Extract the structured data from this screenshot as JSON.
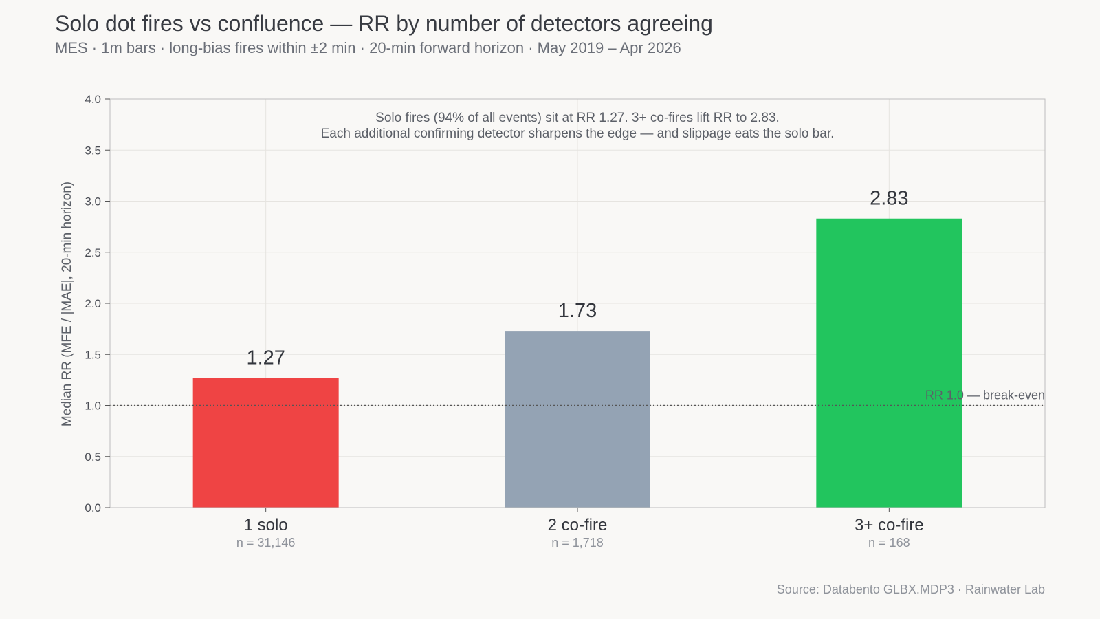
{
  "chart_data": {
    "type": "bar",
    "title": "Solo dot fires vs confluence — RR by number of detectors agreeing",
    "subtitle": "MES · 1m bars · long-bias fires within ±2 min · 20-min forward horizon · May 2019 – Apr 2026",
    "xlabel": "",
    "ylabel": "Median RR (MFE / |MAE|, 20-min horizon)",
    "ylim": [
      0,
      4.0
    ],
    "yticks": [
      "0.0",
      "0.5",
      "1.0",
      "1.5",
      "2.0",
      "2.5",
      "3.0",
      "3.5",
      "4.0"
    ],
    "grid": true,
    "categories": [
      "1 solo",
      "2 co-fire",
      "3+ co-fire"
    ],
    "sample_sizes": [
      "n = 31,146",
      "n = 1,718",
      "n = 168"
    ],
    "values": [
      1.27,
      1.73,
      2.83
    ],
    "value_labels": [
      "1.27",
      "1.73",
      "2.83"
    ],
    "colors": [
      "#ef4444",
      "#94a3b4",
      "#22c55e"
    ],
    "reference_line": {
      "value": 1.0,
      "label": "RR 1.0 — break-even",
      "style": "dotted"
    },
    "annotation": [
      "Solo fires (94% of all events) sit at RR 1.27.   3+ co-fires lift RR to 2.83.",
      "Each additional confirming detector sharpens the edge — and slippage eats the solo bar."
    ],
    "source": "Source: Databento GLBX.MDP3 · Rainwater Lab"
  }
}
